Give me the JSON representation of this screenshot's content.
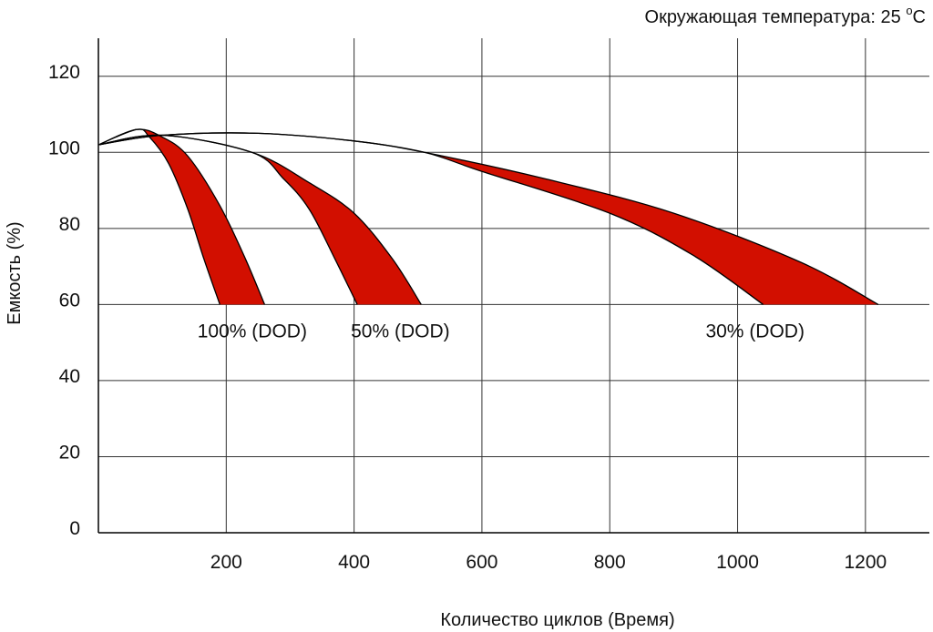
{
  "chart_data": {
    "type": "area",
    "title": "",
    "annotation": {
      "prefix": "Окружающая температура: 25 ",
      "degree": "o",
      "unit": "C"
    },
    "xlabel": "Количество циклов (Время)",
    "ylabel": "Емкость (%)",
    "xlim": [
      0,
      1300
    ],
    "ylim": [
      0,
      130
    ],
    "x_ticks": [
      200,
      400,
      600,
      800,
      1000,
      1200
    ],
    "y_ticks": [
      0,
      20,
      40,
      60,
      80,
      100,
      120
    ],
    "grid": true,
    "colors": {
      "band": "#d20f00",
      "line": "#000000",
      "grid": "#333333"
    },
    "series": [
      {
        "name": "100% (DOD)",
        "label_at": [
          155,
          53
        ],
        "lower": [
          [
            0,
            102
          ],
          [
            60,
            106
          ],
          [
            80,
            104
          ],
          [
            110,
            97
          ],
          [
            140,
            85
          ],
          [
            165,
            72
          ],
          [
            190,
            60
          ]
        ],
        "upper": [
          [
            0,
            102
          ],
          [
            60,
            106
          ],
          [
            100,
            104
          ],
          [
            140,
            99
          ],
          [
            190,
            86
          ],
          [
            230,
            72
          ],
          [
            260,
            60
          ]
        ]
      },
      {
        "name": "50% (DOD)",
        "label_at": [
          395,
          53
        ],
        "lower": [
          [
            0,
            102
          ],
          [
            100,
            104.5
          ],
          [
            240,
            100
          ],
          [
            290,
            93
          ],
          [
            330,
            85
          ],
          [
            370,
            72
          ],
          [
            405,
            60
          ]
        ],
        "upper": [
          [
            0,
            102
          ],
          [
            100,
            104.5
          ],
          [
            240,
            100
          ],
          [
            330,
            92
          ],
          [
            400,
            84
          ],
          [
            460,
            72
          ],
          [
            505,
            60
          ]
        ]
      },
      {
        "name": "30% (DOD)",
        "label_at": [
          950,
          53
        ],
        "lower": [
          [
            0,
            102
          ],
          [
            100,
            104.5
          ],
          [
            250,
            105
          ],
          [
            400,
            103
          ],
          [
            510,
            100
          ],
          [
            600,
            95
          ],
          [
            800,
            84
          ],
          [
            930,
            73
          ],
          [
            1040,
            60
          ]
        ],
        "upper": [
          [
            0,
            102
          ],
          [
            100,
            104.5
          ],
          [
            250,
            105
          ],
          [
            400,
            103
          ],
          [
            510,
            100
          ],
          [
            700,
            93
          ],
          [
            900,
            84
          ],
          [
            1100,
            71
          ],
          [
            1220,
            60
          ]
        ]
      }
    ]
  }
}
